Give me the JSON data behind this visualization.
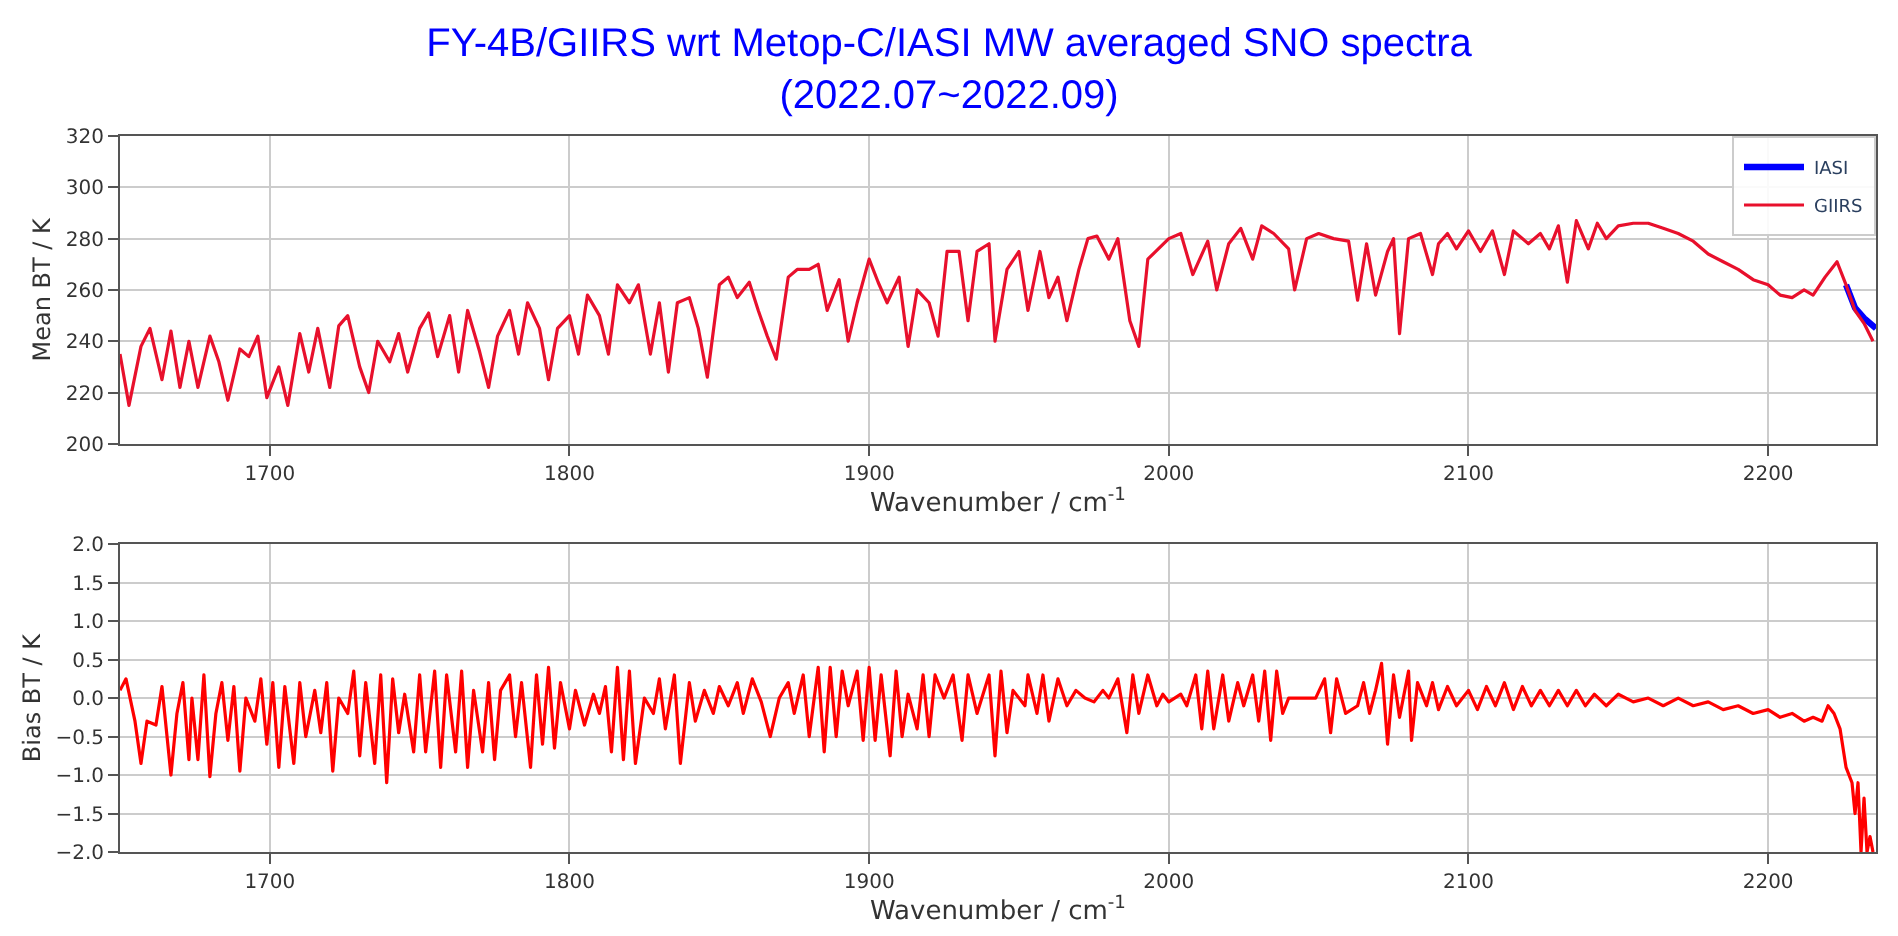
{
  "chart_data": [
    {
      "type": "line",
      "title": "FY-4B/GIIRS wrt Metop-C/IASI MW averaged SNO spectra",
      "subtitle": "(2022.07~2022.09)",
      "xlabel": "Wavenumber / cm$^{-1}$",
      "ylabel": "Mean BT / K",
      "xlim": [
        1650,
        2236
      ],
      "xticks": [
        1700,
        1800,
        1900,
        2000,
        2100,
        2200
      ],
      "ylim": [
        200,
        320
      ],
      "yticks": [
        200,
        220,
        240,
        260,
        280,
        300,
        320
      ],
      "grid": true,
      "legend": "top right",
      "line_style": "solid",
      "series": [
        {
          "name": "IASI",
          "color": "#0000ff",
          "x": [
            2226,
            2229,
            2232,
            2236
          ],
          "values": [
            262,
            253,
            249,
            245
          ]
        },
        {
          "name": "GIIRS",
          "color": "#e8102c",
          "x": [
            1650,
            1653,
            1657,
            1660,
            1664,
            1667,
            1670,
            1673,
            1676,
            1680,
            1683,
            1686,
            1690,
            1693,
            1696,
            1699,
            1703,
            1706,
            1710,
            1713,
            1716,
            1720,
            1723,
            1726,
            1730,
            1733,
            1736,
            1740,
            1743,
            1746,
            1750,
            1753,
            1756,
            1760,
            1763,
            1766,
            1770,
            1773,
            1776,
            1780,
            1783,
            1786,
            1790,
            1793,
            1796,
            1800,
            1803,
            1806,
            1810,
            1813,
            1816,
            1820,
            1823,
            1827,
            1830,
            1833,
            1836,
            1840,
            1843,
            1846,
            1850,
            1853,
            1856,
            1860,
            1863,
            1866,
            1869,
            1873,
            1876,
            1880,
            1883,
            1886,
            1890,
            1893,
            1896,
            1900,
            1903,
            1906,
            1910,
            1913,
            1916,
            1920,
            1923,
            1926,
            1930,
            1933,
            1936,
            1940,
            1942,
            1946,
            1950,
            1953,
            1957,
            1960,
            1963,
            1966,
            1970,
            1973,
            1976,
            1980,
            1983,
            1987,
            1990,
            1993,
            2000,
            2004,
            2008,
            2013,
            2016,
            2020,
            2024,
            2028,
            2031,
            2035,
            2040,
            2042,
            2046,
            2050,
            2055,
            2060,
            2063,
            2066,
            2069,
            2073,
            2075,
            2077,
            2080,
            2084,
            2088,
            2090,
            2093,
            2096,
            2100,
            2104,
            2108,
            2112,
            2115,
            2120,
            2124,
            2127,
            2130,
            2133,
            2136,
            2140,
            2143,
            2146,
            2150,
            2155,
            2160,
            2165,
            2170,
            2175,
            2180,
            2185,
            2190,
            2195,
            2200,
            2204,
            2208,
            2212,
            2215,
            2219,
            2223,
            2226,
            2229,
            2232,
            2235
          ],
          "values": [
            235,
            215,
            238,
            245,
            225,
            244,
            222,
            240,
            222,
            242,
            232,
            217,
            237,
            234,
            242,
            218,
            230,
            215,
            243,
            228,
            245,
            222,
            246,
            250,
            230,
            220,
            240,
            232,
            243,
            228,
            245,
            251,
            234,
            250,
            228,
            252,
            236,
            222,
            242,
            252,
            235,
            255,
            245,
            225,
            245,
            250,
            235,
            258,
            250,
            235,
            262,
            255,
            262,
            235,
            255,
            228,
            255,
            257,
            245,
            226,
            262,
            265,
            257,
            263,
            252,
            242,
            233,
            265,
            268,
            268,
            270,
            252,
            264,
            240,
            255,
            272,
            263,
            255,
            265,
            238,
            260,
            255,
            242,
            275,
            275,
            248,
            275,
            278,
            240,
            268,
            275,
            252,
            275,
            257,
            265,
            248,
            268,
            280,
            281,
            272,
            280,
            248,
            238,
            272,
            280,
            282,
            266,
            279,
            260,
            278,
            284,
            272,
            285,
            282,
            276,
            260,
            280,
            282,
            280,
            279,
            256,
            278,
            258,
            275,
            280,
            243,
            280,
            282,
            266,
            278,
            282,
            276,
            283,
            275,
            283,
            266,
            283,
            278,
            282,
            276,
            285,
            263,
            287,
            276,
            286,
            280,
            285,
            286,
            286,
            284,
            282,
            279,
            274,
            271,
            268,
            264,
            262,
            258,
            257,
            260,
            258,
            265,
            271,
            262,
            252,
            247,
            240
          ]
        }
      ]
    },
    {
      "type": "line",
      "xlabel": "Wavenumber / cm$^{-1}$",
      "ylabel": "Bias BT / K",
      "xlim": [
        1650,
        2236
      ],
      "xticks": [
        1700,
        1800,
        1900,
        2000,
        2100,
        2200
      ],
      "ylim": [
        -2,
        2
      ],
      "yticks": [
        {
          "value": -2,
          "label": "−2.0"
        },
        {
          "value": -1.5,
          "label": "−1.5"
        },
        {
          "value": -1,
          "label": "−1.0"
        },
        {
          "value": -0.5,
          "label": "−0.5"
        },
        {
          "value": 0,
          "label": "0.0"
        },
        {
          "value": 0.5,
          "label": "0.5"
        },
        {
          "value": 1,
          "label": "1.0"
        },
        {
          "value": 1.5,
          "label": "1.5"
        },
        {
          "value": 2,
          "label": "2.0"
        }
      ],
      "grid": true,
      "line_style": "solid",
      "series": [
        {
          "color": "#ff0000",
          "x": [
            1650,
            1652,
            1655,
            1657,
            1659,
            1662,
            1664,
            1667,
            1669,
            1671,
            1673,
            1674,
            1676,
            1678,
            1680,
            1682,
            1684,
            1686,
            1688,
            1690,
            1692,
            1695,
            1697,
            1699,
            1701,
            1703,
            1705,
            1708,
            1710,
            1712,
            1715,
            1717,
            1719,
            1721,
            1723,
            1726,
            1728,
            1730,
            1732,
            1735,
            1737,
            1739,
            1741,
            1743,
            1745,
            1748,
            1750,
            1752,
            1755,
            1757,
            1759,
            1762,
            1764,
            1766,
            1768,
            1771,
            1773,
            1775,
            1777,
            1780,
            1782,
            1784,
            1787,
            1789,
            1791,
            1793,
            1795,
            1797,
            1800,
            1802,
            1805,
            1808,
            1810,
            1812,
            1814,
            1816,
            1818,
            1820,
            1822,
            1825,
            1828,
            1830,
            1832,
            1835,
            1837,
            1840,
            1842,
            1845,
            1848,
            1850,
            1853,
            1856,
            1858,
            1861,
            1864,
            1867,
            1870,
            1873,
            1875,
            1878,
            1880,
            1883,
            1885,
            1887,
            1889,
            1891,
            1893,
            1896,
            1898,
            1900,
            1902,
            1904,
            1907,
            1909,
            1911,
            1913,
            1916,
            1918,
            1920,
            1922,
            1925,
            1928,
            1931,
            1933,
            1936,
            1940,
            1942,
            1944,
            1946,
            1948,
            1952,
            1953,
            1956,
            1958,
            1960,
            1963,
            1966,
            1969,
            1972,
            1975,
            1978,
            1980,
            1983,
            1986,
            1988,
            1990,
            1993,
            1996,
            1998,
            2000,
            2004,
            2006,
            2009,
            2011,
            2013,
            2015,
            2018,
            2020,
            2023,
            2025,
            2028,
            2030,
            2032,
            2034,
            2036,
            2038,
            2040,
            2045,
            2049,
            2052,
            2054,
            2056,
            2059,
            2063,
            2065,
            2067,
            2069,
            2071,
            2073,
            2075,
            2077,
            2080,
            2081,
            2083,
            2086,
            2088,
            2090,
            2093,
            2096,
            2100,
            2103,
            2106,
            2109,
            2112,
            2115,
            2118,
            2121,
            2124,
            2127,
            2130,
            2133,
            2136,
            2139,
            2142,
            2146,
            2150,
            2155,
            2160,
            2165,
            2170,
            2175,
            2180,
            2185,
            2190,
            2195,
            2200,
            2204,
            2208,
            2212,
            2215,
            2218,
            2220,
            2222,
            2224,
            2226,
            2228,
            2229,
            2230,
            2231,
            2232,
            2233,
            2234,
            2235
          ],
          "values": [
            0.1,
            0.25,
            -0.3,
            -0.85,
            -0.3,
            -0.35,
            0.15,
            -1.0,
            -0.2,
            0.2,
            -0.8,
            0.0,
            -0.8,
            0.3,
            -1.02,
            -0.2,
            0.2,
            -0.55,
            0.15,
            -0.95,
            0.0,
            -0.3,
            0.25,
            -0.6,
            0.2,
            -0.9,
            0.15,
            -0.85,
            0.2,
            -0.5,
            0.1,
            -0.45,
            0.2,
            -0.95,
            0.0,
            -0.2,
            0.35,
            -0.75,
            0.2,
            -0.85,
            0.3,
            -1.1,
            0.25,
            -0.45,
            0.05,
            -0.7,
            0.3,
            -0.7,
            0.35,
            -0.9,
            0.3,
            -0.7,
            0.35,
            -0.9,
            0.1,
            -0.7,
            0.2,
            -0.8,
            0.1,
            0.3,
            -0.5,
            0.2,
            -0.9,
            0.3,
            -0.6,
            0.4,
            -0.65,
            0.2,
            -0.4,
            0.1,
            -0.35,
            0.05,
            -0.2,
            0.15,
            -0.7,
            0.4,
            -0.8,
            0.35,
            -0.85,
            0.0,
            -0.2,
            0.25,
            -0.4,
            0.3,
            -0.85,
            0.2,
            -0.3,
            0.1,
            -0.2,
            0.15,
            -0.1,
            0.2,
            -0.2,
            0.25,
            -0.05,
            -0.5,
            0.0,
            0.2,
            -0.2,
            0.3,
            -0.5,
            0.4,
            -0.7,
            0.4,
            -0.5,
            0.35,
            -0.1,
            0.35,
            -0.55,
            0.4,
            -0.55,
            0.3,
            -0.75,
            0.35,
            -0.5,
            0.05,
            -0.4,
            0.3,
            -0.5,
            0.3,
            0.0,
            0.3,
            -0.55,
            0.3,
            -0.2,
            0.3,
            -0.75,
            0.35,
            -0.45,
            0.1,
            -0.1,
            0.3,
            -0.2,
            0.3,
            -0.3,
            0.25,
            -0.1,
            0.1,
            0.0,
            -0.05,
            0.1,
            0.0,
            0.25,
            -0.45,
            0.3,
            -0.2,
            0.3,
            -0.1,
            0.05,
            -0.05,
            0.05,
            -0.1,
            0.3,
            -0.4,
            0.35,
            -0.4,
            0.3,
            -0.3,
            0.2,
            -0.1,
            0.3,
            -0.3,
            0.35,
            -0.55,
            0.35,
            -0.2,
            0.0,
            0.0,
            0.0,
            0.25,
            -0.45,
            0.25,
            -0.2,
            -0.1,
            0.2,
            -0.2,
            0.1,
            0.45,
            -0.6,
            0.3,
            -0.25,
            0.35,
            -0.55,
            0.2,
            -0.1,
            0.2,
            -0.15,
            0.15,
            -0.1,
            0.1,
            -0.15,
            0.15,
            -0.1,
            0.2,
            -0.15,
            0.15,
            -0.1,
            0.1,
            -0.1,
            0.1,
            -0.1,
            0.1,
            -0.1,
            0.05,
            -0.1,
            0.05,
            -0.05,
            0.0,
            -0.1,
            0.0,
            -0.1,
            -0.05,
            -0.15,
            -0.1,
            -0.2,
            -0.15,
            -0.25,
            -0.2,
            -0.3,
            -0.25,
            -0.3,
            -0.1,
            -0.2,
            -0.4,
            -0.9,
            -1.1,
            -1.5,
            -1.1,
            -2.0,
            -1.3,
            -2.0,
            -1.8,
            -2.0
          ]
        }
      ]
    }
  ]
}
